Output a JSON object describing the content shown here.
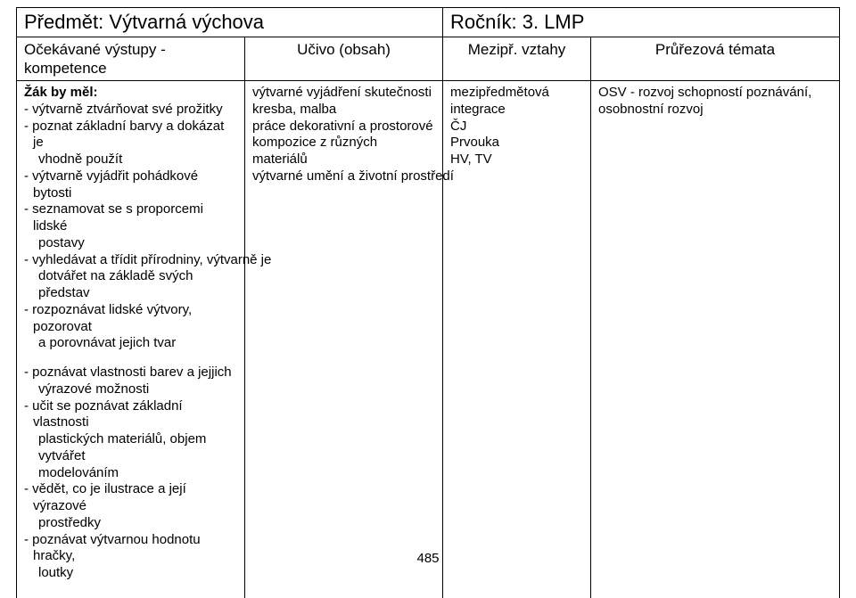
{
  "header": {
    "subject_label": "Předmět:",
    "subject_value": "Výtvarná výchova",
    "grade_label": "Ročník:",
    "grade_value": "3. LMP",
    "col1": "Očekávané výstupy - kompetence",
    "col2": "Učivo (obsah)",
    "col3": "Mezipř. vztahy",
    "col4": "Průřezová témata"
  },
  "col1": {
    "lead": "Žák by měl:",
    "items_a": [
      "- výtvarně ztvárňovat své prožitky",
      " ",
      "- poznat základní barvy a dokázat je",
      "  vhodně použít",
      "- výtvarně vyjádřit pohádkové bytosti",
      "- seznamovat se s proporcemi lidské",
      "  postavy",
      "- vyhledávat a třídit přírodniny, výtvarně je",
      "  dotvářet na základě svých představ",
      "- rozpoznávat lidské výtvory, pozorovat",
      "  a porovnávat jejich tvar"
    ],
    "items_b": [
      "- poznávat vlastnosti barev a jejjich",
      "  výrazové možnosti",
      "- učit se poznávat základní vlastnosti",
      "  plastických materiálů, objem vytvářet",
      "  modelováním",
      "- vědět, co je ilustrace a její výrazové",
      "  prostředky",
      "- poznávat výtvarnou hodnotu hračky,",
      "  loutky"
    ]
  },
  "col2": {
    "lines": [
      "výtvarné vyjádření skutečnosti",
      "kresba, malba",
      " ",
      " ",
      "práce dekorativní a prostorové",
      " ",
      " ",
      "kompozice z různých materiálů",
      " ",
      " ",
      "výtvarné umění a životní prostředí"
    ]
  },
  "col3": {
    "lines": [
      "mezipředmětová",
      "integrace",
      " ",
      "ČJ",
      " ",
      " ",
      "Prvouka",
      "HV, TV"
    ]
  },
  "col4": {
    "lines": [
      "OSV - rozvoj schopností poznávání,",
      "osobnostní rozvoj"
    ]
  },
  "page_number": "485"
}
